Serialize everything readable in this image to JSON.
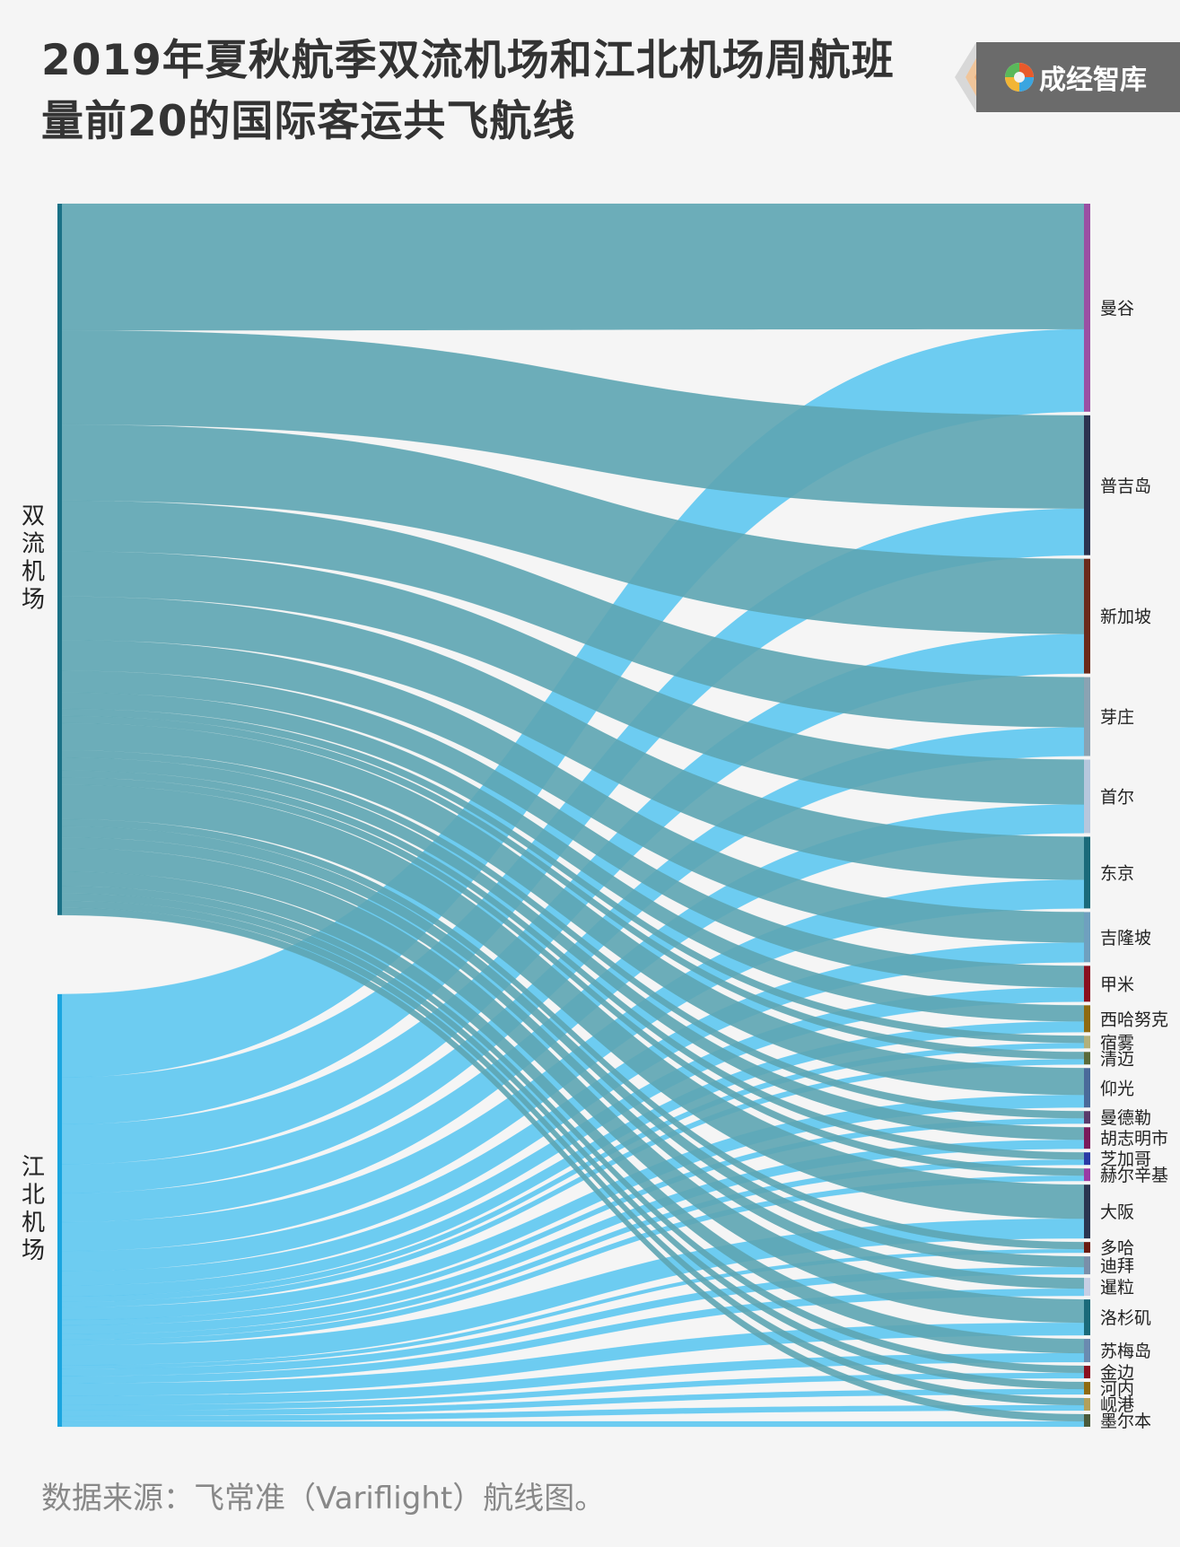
{
  "title": {
    "line1": "2019年夏秋航季双流机场和江北机场周航班",
    "line2": "量前20的国际客运共飞航线"
  },
  "brand": {
    "name": "成经智库"
  },
  "source": "数据来源：飞常准（Variflight）航线图。",
  "colors": {
    "shuangliu_flow": "#5da5b3",
    "jiangbei_flow": "#4fc3f0",
    "shuangliu_node": "#1a7186",
    "jiangbei_node": "#1aa5df"
  },
  "chart_data": {
    "type": "sankey",
    "sources": [
      {
        "name": "双流机场",
        "label_chars": [
          "双",
          "流",
          "机",
          "场"
        ],
        "color": "#1a7186"
      },
      {
        "name": "江北机场",
        "label_chars": [
          "江",
          "北",
          "机",
          "场"
        ],
        "color": "#1aa5df"
      }
    ],
    "targets": [
      {
        "name": "曼谷",
        "color": "#9b4fa3",
        "values": [
          70,
          46
        ]
      },
      {
        "name": "普吉岛",
        "color": "#2c3350",
        "values": [
          52,
          26
        ]
      },
      {
        "name": "新加坡",
        "color": "#6b2a1a",
        "values": [
          42,
          22
        ]
      },
      {
        "name": "芽庄",
        "color": "#8aa3b3",
        "values": [
          28,
          16
        ]
      },
      {
        "name": "首尔",
        "color": "#b6c7dd",
        "values": [
          25,
          16
        ]
      },
      {
        "name": "东京",
        "color": "#1a6a7a",
        "values": [
          24,
          16
        ]
      },
      {
        "name": "吉隆坡",
        "color": "#6fa0bf",
        "values": [
          17,
          11
        ]
      },
      {
        "name": "甲米",
        "color": "#8a0f1f",
        "values": [
          12,
          8
        ]
      },
      {
        "name": "西哈努克",
        "color": "#8f6a0f",
        "values": [
          9,
          6
        ]
      },
      {
        "name": "宿雾",
        "color": "#b3b07a",
        "values": [
          4,
          3
        ]
      },
      {
        "name": "清迈",
        "color": "#5a6a3a",
        "values": [
          4,
          3
        ]
      },
      {
        "name": "仰光",
        "color": "#4a6a9a",
        "values": [
          15,
          7
        ]
      },
      {
        "name": "曼德勒",
        "color": "#5a3a6a",
        "values": [
          4,
          3
        ]
      },
      {
        "name": "胡志明市",
        "color": "#7a1a5a",
        "values": [
          7,
          5
        ]
      },
      {
        "name": "芝加哥",
        "color": "#2a3aa5",
        "values": [
          4,
          3
        ]
      },
      {
        "name": "赫尔辛基",
        "color": "#9a3aa5",
        "values": [
          4,
          3
        ]
      },
      {
        "name": "大阪",
        "color": "#2a3550",
        "values": [
          19,
          11
        ]
      },
      {
        "name": "多哈",
        "color": "#6a1a0f",
        "values": [
          4,
          2
        ]
      },
      {
        "name": "迪拜",
        "color": "#7a8faa",
        "values": [
          6,
          4
        ]
      },
      {
        "name": "暹粒",
        "color": "#c7cfe5",
        "values": [
          6,
          4
        ]
      },
      {
        "name": "洛杉矶",
        "color": "#1a6a7a",
        "values": [
          13,
          7
        ]
      },
      {
        "name": "苏梅岛",
        "color": "#6a8ab0",
        "values": [
          8,
          5
        ]
      },
      {
        "name": "金边",
        "color": "#8a0f1f",
        "values": [
          4,
          3
        ]
      },
      {
        "name": "河内",
        "color": "#8f6a0f",
        "values": [
          4,
          3
        ]
      },
      {
        "name": "岘港",
        "color": "#b3a05a",
        "values": [
          4,
          3
        ]
      },
      {
        "name": "墨尔本",
        "color": "#4a5a3a",
        "values": [
          4,
          3
        ]
      }
    ]
  }
}
